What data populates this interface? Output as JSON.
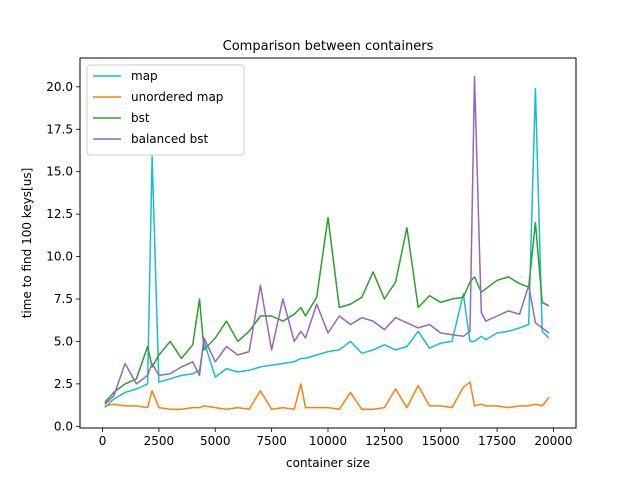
{
  "chart_data": {
    "type": "line",
    "title": "Comparison between containers",
    "xlabel": "container size",
    "ylabel": "time to find 100 keys[us]",
    "xlim": [
      -1000,
      21000
    ],
    "ylim": [
      -0.1,
      21.7
    ],
    "xticks": [
      0,
      2500,
      5000,
      7500,
      10000,
      12500,
      15000,
      17500,
      20000
    ],
    "yticks": [
      0.0,
      2.5,
      5.0,
      7.5,
      10.0,
      12.5,
      15.0,
      17.5,
      20.0
    ],
    "xtick_labels": [
      "0",
      "2500",
      "5000",
      "7500",
      "10000",
      "12500",
      "15000",
      "17500",
      "20000"
    ],
    "ytick_labels": [
      "0.0",
      "2.5",
      "5.0",
      "7.5",
      "10.0",
      "12.5",
      "15.0",
      "17.5",
      "20.0"
    ],
    "legend_position": "top-left",
    "grid": false,
    "x": [
      100,
      500,
      1000,
      1500,
      2000,
      2200,
      2500,
      3000,
      3500,
      4000,
      4300,
      4500,
      5000,
      5500,
      6000,
      6500,
      7000,
      7500,
      8000,
      8500,
      8800,
      9000,
      9500,
      10000,
      10500,
      11000,
      11500,
      12000,
      12500,
      13000,
      13500,
      14000,
      14500,
      15000,
      15500,
      16000,
      16300,
      16500,
      16800,
      17000,
      17500,
      18000,
      18500,
      18900,
      19200,
      19500,
      19800
    ],
    "series": [
      {
        "name": "map",
        "color": "#17becf",
        "values": [
          1.1,
          1.6,
          2.0,
          2.2,
          2.5,
          15.9,
          2.6,
          2.8,
          3.0,
          3.1,
          3.3,
          5.0,
          2.9,
          3.4,
          3.2,
          3.3,
          3.5,
          3.6,
          3.7,
          3.8,
          4.0,
          4.0,
          4.2,
          4.4,
          4.5,
          5.0,
          4.3,
          4.5,
          4.8,
          4.5,
          4.7,
          5.6,
          4.6,
          4.9,
          5.0,
          7.8,
          5.0,
          5.0,
          5.3,
          5.1,
          5.5,
          5.6,
          5.8,
          6.0,
          19.9,
          5.6,
          5.2
        ]
      },
      {
        "name": "unordered map",
        "color": "#ff7f0e",
        "values": [
          1.2,
          1.3,
          1.2,
          1.2,
          1.1,
          2.1,
          1.1,
          1.0,
          1.0,
          1.1,
          1.1,
          1.2,
          1.1,
          1.0,
          1.1,
          1.0,
          2.1,
          1.0,
          1.1,
          1.0,
          2.5,
          1.1,
          1.1,
          1.1,
          1.0,
          2.0,
          1.0,
          1.0,
          1.1,
          2.2,
          1.1,
          2.4,
          1.2,
          1.2,
          1.1,
          2.3,
          2.6,
          1.2,
          1.3,
          1.2,
          1.2,
          1.1,
          1.2,
          1.2,
          1.3,
          1.2,
          1.7
        ]
      },
      {
        "name": "bst",
        "color": "#2ca02c",
        "values": [
          1.4,
          2.0,
          2.5,
          2.8,
          4.7,
          3.5,
          4.2,
          5.0,
          4.0,
          4.8,
          7.5,
          4.5,
          5.2,
          6.2,
          5.0,
          5.6,
          6.5,
          6.5,
          6.2,
          6.6,
          7.0,
          6.5,
          7.6,
          12.3,
          7.0,
          7.2,
          7.6,
          9.1,
          7.5,
          8.5,
          11.7,
          7.0,
          7.7,
          7.3,
          7.5,
          7.6,
          8.5,
          8.8,
          7.9,
          8.1,
          8.6,
          8.8,
          8.4,
          8.2,
          12.0,
          7.3,
          7.1
        ]
      },
      {
        "name": "balanced bst",
        "color": "#9467bd",
        "values": [
          1.3,
          1.8,
          3.7,
          2.5,
          3.0,
          3.7,
          3.0,
          3.1,
          3.5,
          3.8,
          3.0,
          5.2,
          3.8,
          4.7,
          4.2,
          4.4,
          8.3,
          4.5,
          7.5,
          5.0,
          5.6,
          5.2,
          7.2,
          5.5,
          6.5,
          6.0,
          6.4,
          6.2,
          5.7,
          6.4,
          6.1,
          5.8,
          6.0,
          5.5,
          5.4,
          5.3,
          5.6,
          20.6,
          6.7,
          6.2,
          6.5,
          6.8,
          6.6,
          8.3,
          6.1,
          5.8,
          5.5
        ]
      }
    ]
  }
}
